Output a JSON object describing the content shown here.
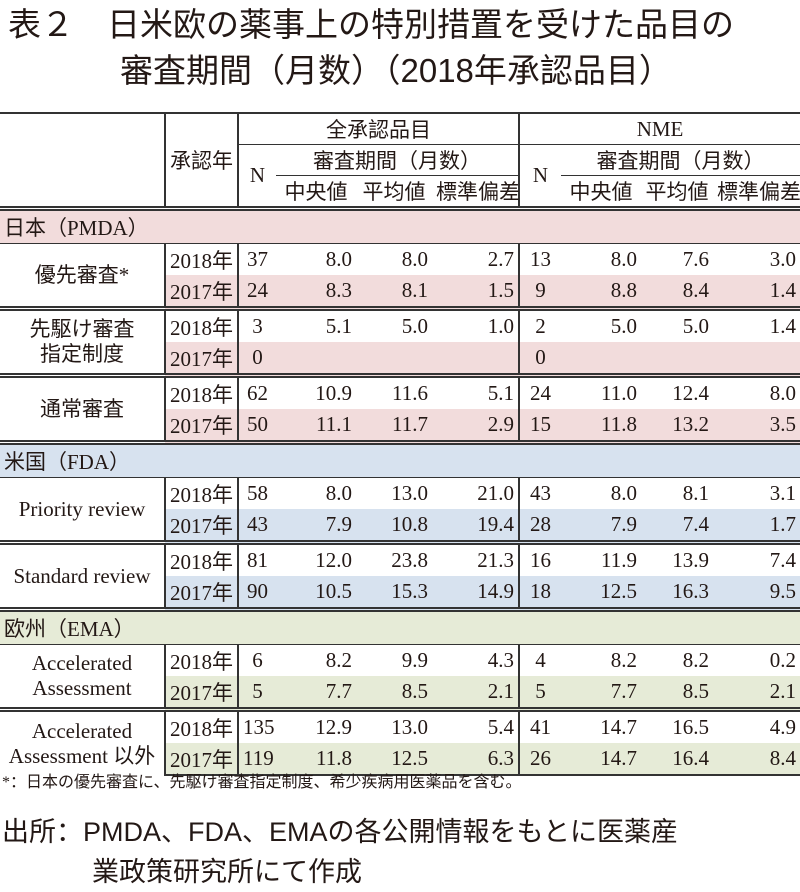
{
  "title": {
    "line1": "表２　日米欧の薬事上の特別措置を受けた品目の",
    "line2": "審査期間（月数）（2018年承認品目）"
  },
  "header": {
    "approval_year": "承認年",
    "all_products": "全承認品目",
    "nme": "NME",
    "n": "N",
    "review_period": "審査期間（月数）",
    "median": "中央値",
    "mean": "平均値",
    "sd": "標準偏差"
  },
  "colors": {
    "japan": "#f2dcdc",
    "usa": "#d7e2ef",
    "eu": "#e6ebd7"
  },
  "sections": [
    {
      "label": "日本（PMDA）",
      "color_key": "japan",
      "groups": [
        {
          "label": "優先審査*",
          "rows": [
            {
              "year": "2018年",
              "all": [
                "37",
                "8.0",
                "8.0",
                "2.7"
              ],
              "nme": [
                "13",
                "8.0",
                "7.6",
                "3.0"
              ]
            },
            {
              "year": "2017年",
              "all": [
                "24",
                "8.3",
                "8.1",
                "1.5"
              ],
              "nme": [
                "9",
                "8.8",
                "8.4",
                "1.4"
              ]
            }
          ]
        },
        {
          "label": "先駆け審査\n指定制度",
          "rows": [
            {
              "year": "2018年",
              "all": [
                "3",
                "5.1",
                "5.0",
                "1.0"
              ],
              "nme": [
                "2",
                "5.0",
                "5.0",
                "1.4"
              ]
            },
            {
              "year": "2017年",
              "all": [
                "0",
                "",
                "",
                ""
              ],
              "nme": [
                "0",
                "",
                "",
                ""
              ]
            }
          ]
        },
        {
          "label": "通常審査",
          "rows": [
            {
              "year": "2018年",
              "all": [
                "62",
                "10.9",
                "11.6",
                "5.1"
              ],
              "nme": [
                "24",
                "11.0",
                "12.4",
                "8.0"
              ]
            },
            {
              "year": "2017年",
              "all": [
                "50",
                "11.1",
                "11.7",
                "2.9"
              ],
              "nme": [
                "15",
                "11.8",
                "13.2",
                "3.5"
              ]
            }
          ]
        }
      ]
    },
    {
      "label": "米国（FDA）",
      "color_key": "usa",
      "groups": [
        {
          "label": "Priority review",
          "rows": [
            {
              "year": "2018年",
              "all": [
                "58",
                "8.0",
                "13.0",
                "21.0"
              ],
              "nme": [
                "43",
                "8.0",
                "8.1",
                "3.1"
              ]
            },
            {
              "year": "2017年",
              "all": [
                "43",
                "7.9",
                "10.8",
                "19.4"
              ],
              "nme": [
                "28",
                "7.9",
                "7.4",
                "1.7"
              ]
            }
          ]
        },
        {
          "label": "Standard review",
          "rows": [
            {
              "year": "2018年",
              "all": [
                "81",
                "12.0",
                "23.8",
                "21.3"
              ],
              "nme": [
                "16",
                "11.9",
                "13.9",
                "7.4"
              ]
            },
            {
              "year": "2017年",
              "all": [
                "90",
                "10.5",
                "15.3",
                "14.9"
              ],
              "nme": [
                "18",
                "12.5",
                "16.3",
                "9.5"
              ]
            }
          ]
        }
      ]
    },
    {
      "label": "欧州（EMA）",
      "color_key": "eu",
      "groups": [
        {
          "label": "Accelerated\nAssessment",
          "rows": [
            {
              "year": "2018年",
              "all": [
                "6",
                "8.2",
                "9.9",
                "4.3"
              ],
              "nme": [
                "4",
                "8.2",
                "8.2",
                "0.2"
              ]
            },
            {
              "year": "2017年",
              "all": [
                "5",
                "7.7",
                "8.5",
                "2.1"
              ],
              "nme": [
                "5",
                "7.7",
                "8.5",
                "2.1"
              ]
            }
          ]
        },
        {
          "label": "Accelerated\nAssessment 以外",
          "rows": [
            {
              "year": "2018年",
              "all": [
                "135",
                "12.9",
                "13.0",
                "5.4"
              ],
              "nme": [
                "41",
                "14.7",
                "16.5",
                "4.9"
              ]
            },
            {
              "year": "2017年",
              "all": [
                "119",
                "11.8",
                "12.5",
                "6.3"
              ],
              "nme": [
                "26",
                "14.7",
                "16.4",
                "8.4"
              ]
            }
          ]
        }
      ]
    }
  ],
  "footnote": "*：日本の優先審査に、先駆け審査指定制度、希少疾病用医薬品を含む。",
  "source": {
    "line1": "出所：PMDA、FDA、EMAの各公開情報をもとに医薬産",
    "line2": "業政策研究所にて作成"
  }
}
